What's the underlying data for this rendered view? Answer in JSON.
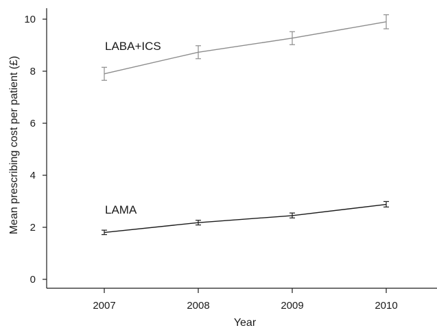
{
  "chart_data": {
    "type": "line",
    "title": "",
    "xlabel": "Year",
    "ylabel": "Mean prescribing cost per patient (£)",
    "x": [
      2007,
      2008,
      2009,
      2010
    ],
    "x_tick_labels": [
      "2007",
      "2008",
      "2009",
      "2010"
    ],
    "xlim": [
      2006.5,
      2010.7
    ],
    "ylim": [
      -0.2,
      10.5
    ],
    "y_ticks": [
      0,
      2,
      4,
      6,
      8,
      10
    ],
    "y_tick_labels": [
      "0",
      "2",
      "4",
      "6",
      "8",
      "10"
    ],
    "grid": false,
    "legend": "none",
    "series": [
      {
        "name": "LABA+ICS",
        "color": "#8c8c8c",
        "values": [
          7.9,
          8.73,
          9.27,
          9.9
        ],
        "error_low": [
          7.65,
          8.48,
          9.02,
          9.63
        ],
        "error_high": [
          8.15,
          8.98,
          9.52,
          10.17
        ]
      },
      {
        "name": "LAMA",
        "color": "#1a1a1a",
        "values": [
          1.8,
          2.18,
          2.45,
          2.88
        ],
        "error_low": [
          1.72,
          2.09,
          2.36,
          2.78
        ],
        "error_high": [
          1.89,
          2.27,
          2.55,
          2.99
        ]
      }
    ]
  }
}
